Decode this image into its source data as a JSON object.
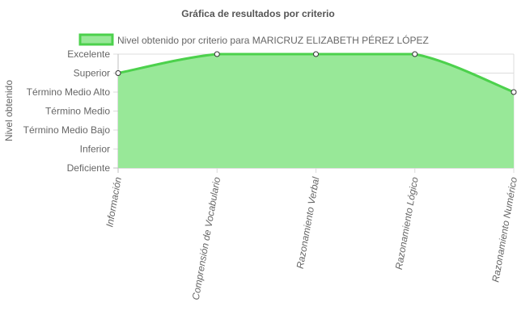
{
  "chart_data": {
    "type": "area",
    "title": "Gráfica de resultados por criterio",
    "ylabel": "Nivel obtenido",
    "xlabel": "",
    "categories": [
      "Información",
      "Comprensión de Vocabulario",
      "Razonamiento Verbal",
      "Razonamiento Lógico",
      "Razonamiento Numérico"
    ],
    "y_levels": [
      "Deficiente",
      "Inferior",
      "Término Medio Bajo",
      "Término Medio",
      "Término Medio Alto",
      "Superior",
      "Excelente"
    ],
    "series": [
      {
        "name": "Nivel obtenido por criterio para MARICRUZ ELIZABETH PÉREZ LÓPEZ",
        "values": [
          5,
          6,
          6,
          6,
          4
        ]
      }
    ],
    "ylim": [
      0,
      6
    ],
    "grid": true,
    "legend_position": "top",
    "colors": {
      "fill": "#98e898",
      "line": "#4cd14c",
      "grid": "#dcdcdc",
      "axis": "#bfbfbf",
      "text": "#666666",
      "title": "#555555",
      "point_fill": "#ffffff",
      "point_stroke": "#333333"
    }
  }
}
